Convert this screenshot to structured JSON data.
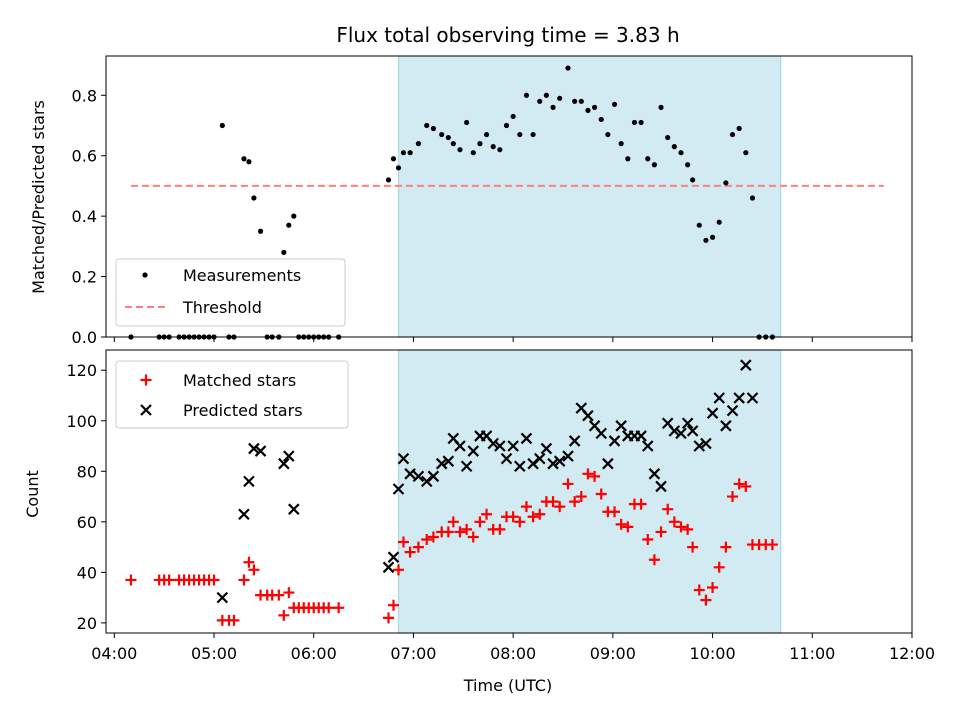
{
  "colors": {
    "observing_window": "#add8e6",
    "measurements": "#000000",
    "threshold": "#ff7f7f",
    "matched": "#ff0000",
    "predicted": "#000000"
  },
  "chart_data": [
    {
      "type": "scatter",
      "title": "Flux total observing time = 3.83 h",
      "ylabel": "Matched/Predicted stars",
      "xlabel": "",
      "x_ticks": [
        "04:00",
        "05:00",
        "06:00",
        "07:00",
        "08:00",
        "09:00",
        "10:00",
        "11:00",
        "12:00"
      ],
      "x_tick_labels_shown": false,
      "xlim": [
        "03:55",
        "12:00"
      ],
      "ylim": [
        0,
        0.93
      ],
      "y_ticks": [
        0.0,
        0.2,
        0.4,
        0.6,
        0.8
      ],
      "y_tick_labels": [
        "0.0",
        "0.2",
        "0.4",
        "0.6",
        "0.8"
      ],
      "legend_position": "lower-left",
      "shaded_span": [
        "06:51",
        "10:41"
      ],
      "threshold": {
        "name": "Threshold",
        "y": 0.5,
        "x_start": "04:10",
        "x_end": "11:43",
        "style": "dashed"
      },
      "series": [
        {
          "name": "Measurements",
          "marker": "dot",
          "points": [
            [
              "04:10",
              0
            ],
            [
              "04:27",
              0
            ],
            [
              "04:30",
              0
            ],
            [
              "04:33",
              0
            ],
            [
              "04:39",
              0
            ],
            [
              "04:42",
              0
            ],
            [
              "04:45",
              0
            ],
            [
              "04:48",
              0
            ],
            [
              "04:51",
              0
            ],
            [
              "04:54",
              0
            ],
            [
              "04:57",
              0
            ],
            [
              "05:00",
              0
            ],
            [
              "05:05",
              0.7
            ],
            [
              "05:09",
              0
            ],
            [
              "05:12",
              0
            ],
            [
              "05:18",
              0.59
            ],
            [
              "05:21",
              0.58
            ],
            [
              "05:24",
              0.46
            ],
            [
              "05:28",
              0.35
            ],
            [
              "05:32",
              0
            ],
            [
              "05:35",
              0
            ],
            [
              "05:39",
              0
            ],
            [
              "05:42",
              0.28
            ],
            [
              "05:45",
              0.37
            ],
            [
              "05:48",
              0.4
            ],
            [
              "05:51",
              0
            ],
            [
              "05:54",
              0
            ],
            [
              "05:57",
              0
            ],
            [
              "06:00",
              0
            ],
            [
              "06:03",
              0
            ],
            [
              "06:06",
              0
            ],
            [
              "06:09",
              0
            ],
            [
              "06:15",
              0
            ],
            [
              "06:45",
              0.52
            ],
            [
              "06:48",
              0.59
            ],
            [
              "06:51",
              0.56
            ],
            [
              "06:54",
              0.61
            ],
            [
              "06:58",
              0.61
            ],
            [
              "07:03",
              0.64
            ],
            [
              "07:08",
              0.7
            ],
            [
              "07:12",
              0.69
            ],
            [
              "07:17",
              0.67
            ],
            [
              "07:21",
              0.66
            ],
            [
              "07:24",
              0.64
            ],
            [
              "07:28",
              0.62
            ],
            [
              "07:32",
              0.71
            ],
            [
              "07:36",
              0.61
            ],
            [
              "07:40",
              0.64
            ],
            [
              "07:44",
              0.67
            ],
            [
              "07:48",
              0.63
            ],
            [
              "07:52",
              0.62
            ],
            [
              "07:56",
              0.7
            ],
            [
              "08:00",
              0.73
            ],
            [
              "08:04",
              0.67
            ],
            [
              "08:08",
              0.8
            ],
            [
              "08:12",
              0.67
            ],
            [
              "08:16",
              0.78
            ],
            [
              "08:20",
              0.8
            ],
            [
              "08:24",
              0.76
            ],
            [
              "08:28",
              0.79
            ],
            [
              "08:33",
              0.89
            ],
            [
              "08:37",
              0.78
            ],
            [
              "08:41",
              0.78
            ],
            [
              "08:45",
              0.75
            ],
            [
              "08:49",
              0.76
            ],
            [
              "08:53",
              0.72
            ],
            [
              "08:57",
              0.67
            ],
            [
              "09:01",
              0.77
            ],
            [
              "09:05",
              0.64
            ],
            [
              "09:09",
              0.59
            ],
            [
              "09:13",
              0.71
            ],
            [
              "09:17",
              0.71
            ],
            [
              "09:21",
              0.59
            ],
            [
              "09:25",
              0.57
            ],
            [
              "09:29",
              0.76
            ],
            [
              "09:33",
              0.66
            ],
            [
              "09:37",
              0.63
            ],
            [
              "09:41",
              0.61
            ],
            [
              "09:45",
              0.57
            ],
            [
              "09:48",
              0.52
            ],
            [
              "09:52",
              0.37
            ],
            [
              "09:56",
              0.32
            ],
            [
              "10:00",
              0.33
            ],
            [
              "10:04",
              0.38
            ],
            [
              "10:08",
              0.51
            ],
            [
              "10:12",
              0.67
            ],
            [
              "10:16",
              0.69
            ],
            [
              "10:20",
              0.61
            ],
            [
              "10:24",
              0.46
            ],
            [
              "10:28",
              0
            ],
            [
              "10:32",
              0
            ],
            [
              "10:36",
              0
            ]
          ]
        }
      ]
    },
    {
      "type": "scatter",
      "title": "",
      "ylabel": "Count",
      "xlabel": "Time (UTC)",
      "x_ticks": [
        "04:00",
        "05:00",
        "06:00",
        "07:00",
        "08:00",
        "09:00",
        "10:00",
        "11:00",
        "12:00"
      ],
      "x_tick_labels": [
        "04:00",
        "05:00",
        "06:00",
        "07:00",
        "08:00",
        "09:00",
        "10:00",
        "11:00",
        "12:00"
      ],
      "xlim": [
        "03:55",
        "12:00"
      ],
      "ylim": [
        16,
        128
      ],
      "y_ticks": [
        20,
        40,
        60,
        80,
        100,
        120
      ],
      "y_tick_labels": [
        "20",
        "40",
        "60",
        "80",
        "100",
        "120"
      ],
      "legend_position": "upper-left",
      "shaded_span": [
        "06:51",
        "10:41"
      ],
      "series": [
        {
          "name": "Matched stars",
          "marker": "plus",
          "points": [
            [
              "04:10",
              37
            ],
            [
              "04:27",
              37
            ],
            [
              "04:30",
              37
            ],
            [
              "04:33",
              37
            ],
            [
              "04:39",
              37
            ],
            [
              "04:42",
              37
            ],
            [
              "04:45",
              37
            ],
            [
              "04:48",
              37
            ],
            [
              "04:51",
              37
            ],
            [
              "04:54",
              37
            ],
            [
              "04:57",
              37
            ],
            [
              "05:00",
              37
            ],
            [
              "05:05",
              21
            ],
            [
              "05:09",
              21
            ],
            [
              "05:12",
              21
            ],
            [
              "05:18",
              37
            ],
            [
              "05:21",
              44
            ],
            [
              "05:24",
              41
            ],
            [
              "05:28",
              31
            ],
            [
              "05:32",
              31
            ],
            [
              "05:35",
              31
            ],
            [
              "05:39",
              31
            ],
            [
              "05:42",
              23
            ],
            [
              "05:45",
              32
            ],
            [
              "05:48",
              26
            ],
            [
              "05:51",
              26
            ],
            [
              "05:54",
              26
            ],
            [
              "05:57",
              26
            ],
            [
              "06:00",
              26
            ],
            [
              "06:03",
              26
            ],
            [
              "06:06",
              26
            ],
            [
              "06:09",
              26
            ],
            [
              "06:15",
              26
            ],
            [
              "06:45",
              22
            ],
            [
              "06:48",
              27
            ],
            [
              "06:51",
              41
            ],
            [
              "06:54",
              52
            ],
            [
              "06:58",
              48
            ],
            [
              "07:03",
              50
            ],
            [
              "07:08",
              53
            ],
            [
              "07:12",
              54
            ],
            [
              "07:17",
              56
            ],
            [
              "07:21",
              56
            ],
            [
              "07:24",
              60
            ],
            [
              "07:28",
              56
            ],
            [
              "07:32",
              57
            ],
            [
              "07:36",
              54
            ],
            [
              "07:40",
              60
            ],
            [
              "07:44",
              63
            ],
            [
              "07:48",
              57
            ],
            [
              "07:52",
              57
            ],
            [
              "07:56",
              62
            ],
            [
              "08:00",
              62
            ],
            [
              "08:04",
              60
            ],
            [
              "08:08",
              66
            ],
            [
              "08:12",
              62
            ],
            [
              "08:16",
              63
            ],
            [
              "08:20",
              68
            ],
            [
              "08:24",
              68
            ],
            [
              "08:28",
              66
            ],
            [
              "08:33",
              75
            ],
            [
              "08:37",
              68
            ],
            [
              "08:41",
              70
            ],
            [
              "08:45",
              79
            ],
            [
              "08:49",
              78
            ],
            [
              "08:53",
              71
            ],
            [
              "08:57",
              64
            ],
            [
              "09:01",
              64
            ],
            [
              "09:05",
              59
            ],
            [
              "09:09",
              58
            ],
            [
              "09:13",
              67
            ],
            [
              "09:17",
              67
            ],
            [
              "09:21",
              53
            ],
            [
              "09:25",
              45
            ],
            [
              "09:29",
              56
            ],
            [
              "09:33",
              65
            ],
            [
              "09:37",
              60
            ],
            [
              "09:41",
              58
            ],
            [
              "09:45",
              57
            ],
            [
              "09:48",
              50
            ],
            [
              "09:52",
              33
            ],
            [
              "09:56",
              29
            ],
            [
              "10:00",
              34
            ],
            [
              "10:04",
              42
            ],
            [
              "10:08",
              50
            ],
            [
              "10:12",
              70
            ],
            [
              "10:16",
              75
            ],
            [
              "10:20",
              74
            ],
            [
              "10:24",
              51
            ],
            [
              "10:28",
              51
            ],
            [
              "10:32",
              51
            ],
            [
              "10:36",
              51
            ]
          ]
        },
        {
          "name": "Predicted stars",
          "marker": "x",
          "points": [
            [
              "05:05",
              30
            ],
            [
              "05:18",
              63
            ],
            [
              "05:21",
              76
            ],
            [
              "05:24",
              89
            ],
            [
              "05:28",
              88
            ],
            [
              "05:42",
              83
            ],
            [
              "05:45",
              86
            ],
            [
              "05:48",
              65
            ],
            [
              "06:45",
              42
            ],
            [
              "06:48",
              46
            ],
            [
              "06:51",
              73
            ],
            [
              "06:54",
              85
            ],
            [
              "06:58",
              79
            ],
            [
              "07:03",
              78
            ],
            [
              "07:08",
              76
            ],
            [
              "07:12",
              78
            ],
            [
              "07:17",
              83
            ],
            [
              "07:21",
              84
            ],
            [
              "07:24",
              93
            ],
            [
              "07:28",
              90
            ],
            [
              "07:32",
              82
            ],
            [
              "07:36",
              88
            ],
            [
              "07:40",
              94
            ],
            [
              "07:44",
              94
            ],
            [
              "07:48",
              91
            ],
            [
              "07:52",
              90
            ],
            [
              "07:56",
              85
            ],
            [
              "08:00",
              90
            ],
            [
              "08:04",
              82
            ],
            [
              "08:08",
              93
            ],
            [
              "08:12",
              83
            ],
            [
              "08:16",
              85
            ],
            [
              "08:20",
              89
            ],
            [
              "08:24",
              83
            ],
            [
              "08:28",
              84
            ],
            [
              "08:33",
              86
            ],
            [
              "08:37",
              92
            ],
            [
              "08:41",
              105
            ],
            [
              "08:45",
              102
            ],
            [
              "08:49",
              98
            ],
            [
              "08:53",
              95
            ],
            [
              "08:57",
              83
            ],
            [
              "09:01",
              92
            ],
            [
              "09:05",
              98
            ],
            [
              "09:09",
              94
            ],
            [
              "09:13",
              94
            ],
            [
              "09:17",
              94
            ],
            [
              "09:21",
              90
            ],
            [
              "09:25",
              79
            ],
            [
              "09:29",
              74
            ],
            [
              "09:33",
              99
            ],
            [
              "09:37",
              96
            ],
            [
              "09:41",
              95
            ],
            [
              "09:45",
              99
            ],
            [
              "09:48",
              96
            ],
            [
              "09:52",
              90
            ],
            [
              "09:56",
              91
            ],
            [
              "10:00",
              103
            ],
            [
              "10:04",
              109
            ],
            [
              "10:08",
              98
            ],
            [
              "10:12",
              104
            ],
            [
              "10:16",
              109
            ],
            [
              "10:20",
              122
            ],
            [
              "10:24",
              109
            ]
          ]
        }
      ]
    }
  ]
}
